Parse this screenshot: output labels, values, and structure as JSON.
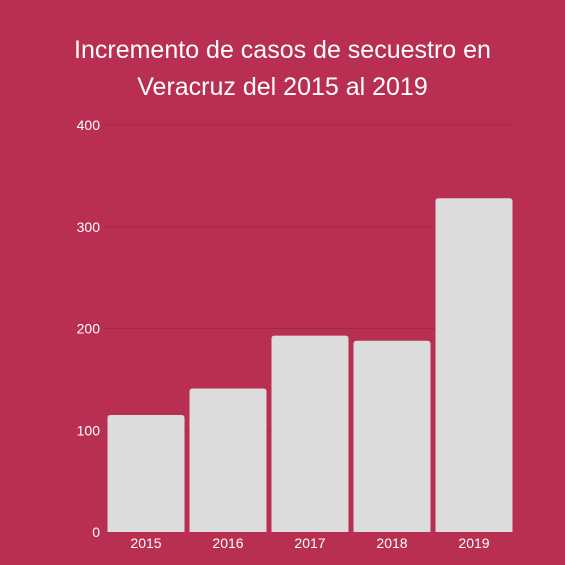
{
  "colors": {
    "background": "#b82f52",
    "bar": "#dcdcdc",
    "grid": "#a32847",
    "text": "#ffffff"
  },
  "chart_data": {
    "type": "bar",
    "title": "Incremento de casos de secuestro en Veracruz del 2015 al 2019",
    "title_lines": [
      "Incremento de casos de secuestro en",
      "Veracruz del 2015 al 2019"
    ],
    "xlabel": "",
    "ylabel": "",
    "categories": [
      "2015",
      "2016",
      "2017",
      "2018",
      "2019"
    ],
    "values": [
      115,
      141,
      193,
      188,
      328
    ],
    "ylim": [
      0,
      400
    ],
    "yticks": [
      0,
      100,
      200,
      300,
      400
    ],
    "grid": true,
    "legend": "none"
  }
}
